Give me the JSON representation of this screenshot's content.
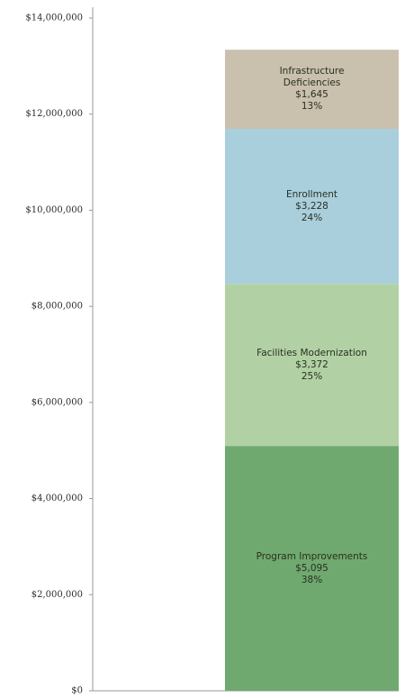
{
  "chart_data": {
    "type": "stacked_bar",
    "categories": [
      null
    ],
    "series": [
      {
        "name": "Program Improvements",
        "color": "#6fa96f",
        "values": [
          5095000
        ],
        "value_labels": [
          "$5,095"
        ],
        "share_labels": [
          "38%"
        ]
      },
      {
        "name": "Facilities Modernization",
        "color": "#b1d1a5",
        "values": [
          3372000
        ],
        "value_labels": [
          "$3,372"
        ],
        "share_labels": [
          "25%"
        ]
      },
      {
        "name": "Enrollment",
        "color": "#aacfdc",
        "values": [
          3228000
        ],
        "value_labels": [
          "$3,228"
        ],
        "share_labels": [
          "24%"
        ]
      },
      {
        "name": "Infrastructure Deficiencies",
        "color": "#c9c0ae",
        "values": [
          1645000
        ],
        "value_labels": [
          "$1,645"
        ],
        "share_labels": [
          "13%"
        ]
      }
    ],
    "ylim": [
      0,
      14000000
    ],
    "yticks": [
      {
        "value": 0,
        "label": "$0"
      },
      {
        "value": 2000000,
        "label": "$2,000,000"
      },
      {
        "value": 4000000,
        "label": "$4,000,000"
      },
      {
        "value": 6000000,
        "label": "$6,000,000"
      },
      {
        "value": 8000000,
        "label": "$8,000,000"
      },
      {
        "value": 10000000,
        "label": "$10,000,000"
      },
      {
        "value": 12000000,
        "label": "$12,000,000"
      },
      {
        "value": 14000000,
        "label": "$14,000,000"
      }
    ],
    "grid": false
  }
}
